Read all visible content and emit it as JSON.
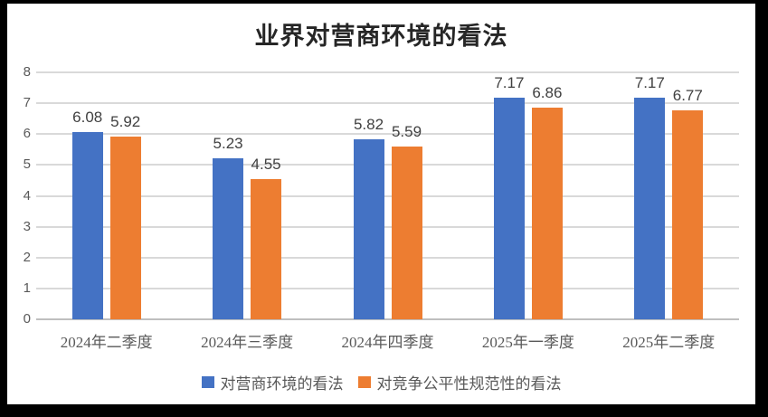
{
  "chart_data": {
    "type": "bar",
    "title": "业界对营商环境的看法",
    "categories": [
      "2024年二季度",
      "2024年三季度",
      "2024年四季度",
      "2025年一季度",
      "2025年二季度"
    ],
    "series": [
      {
        "name": "对营商环境的看法",
        "color": "#4472C4",
        "values": [
          6.08,
          5.23,
          5.82,
          7.17,
          7.17
        ]
      },
      {
        "name": "对竞争公平性规范性的看法",
        "color": "#ED7D31",
        "values": [
          5.92,
          4.55,
          5.59,
          6.86,
          6.77
        ]
      }
    ],
    "ylim": [
      0,
      8
    ],
    "yticks": [
      0,
      1,
      2,
      3,
      4,
      5,
      6,
      7,
      8
    ],
    "grid": true,
    "legend_position": "bottom",
    "value_labels": true,
    "value_label_decimals": 2
  },
  "colors": {
    "frame": "#000000",
    "canvas": "#ffffff",
    "gridline": "#D9D9D9",
    "axis_line": "#BFBFBF",
    "axis_text": "#595959",
    "value_label_text": "#404040",
    "title_text": "#262626"
  }
}
